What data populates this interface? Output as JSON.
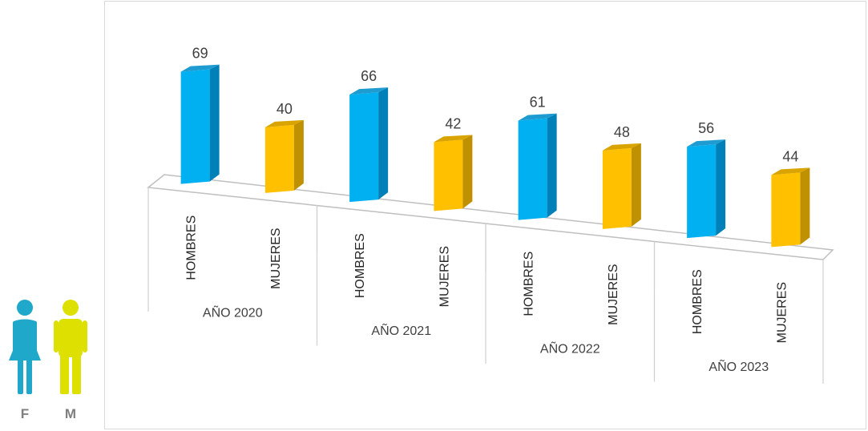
{
  "chart_data": {
    "type": "bar",
    "title": "",
    "xlabel": "",
    "ylabel": "",
    "groups": [
      "AÑO 2020",
      "AÑO 2021",
      "AÑO 2022",
      "AÑO 2023"
    ],
    "categories": [
      "HOMBRES",
      "MUJERES"
    ],
    "values": [
      [
        69,
        40
      ],
      [
        66,
        42
      ],
      [
        61,
        48
      ],
      [
        56,
        44
      ]
    ],
    "colors": {
      "HOMBRES": {
        "front": "#00b0f0",
        "side": "#0080b8",
        "top": "#1e9bd1"
      },
      "MUJERES": {
        "front": "#ffc000",
        "side": "#bf9000",
        "top": "#d9a300"
      }
    },
    "legend": {
      "placement": "bottom-left",
      "items": [
        {
          "letter": "F",
          "icon": "female-figure-icon",
          "color": "#1fa8c9"
        },
        {
          "letter": "M",
          "icon": "male-figure-icon",
          "color": "#dde000"
        }
      ]
    }
  }
}
